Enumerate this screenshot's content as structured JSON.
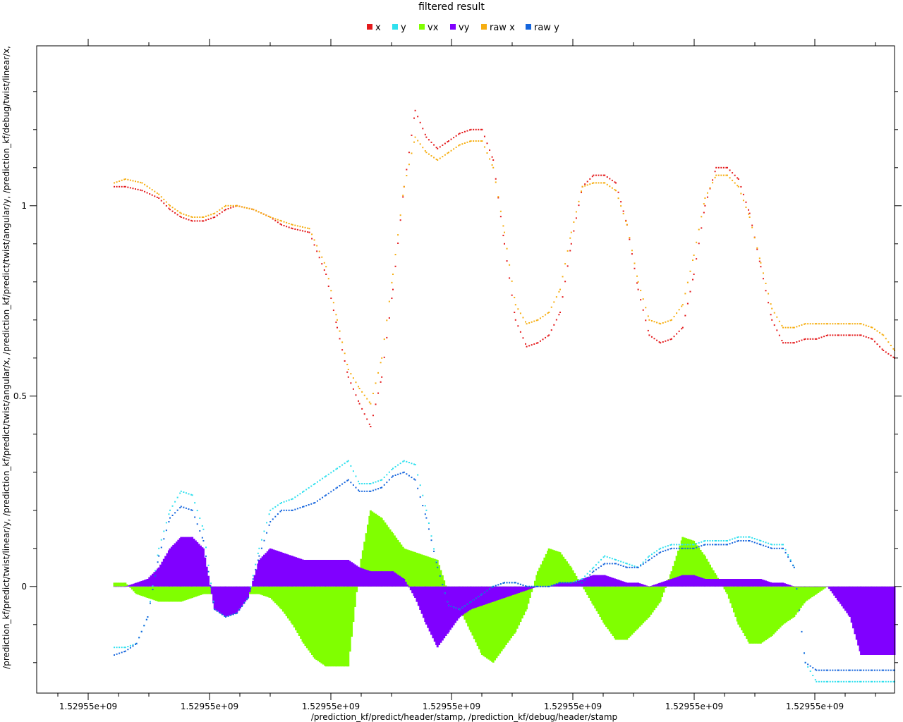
{
  "chart_data": {
    "type": "scatter",
    "title": "filtered result",
    "xlabel": "/prediction_kf/predict/header/stamp, /prediction_kf/debug/header/stamp",
    "ylabel": "/prediction_kf/predict/twist/linear/y, /prediction_kf/predict/twist/angular/x, /prediction_kf/predict/twist/angular/y, /prediction_kf/debug/twist/linear/x,",
    "x_tick_labels": [
      "1.52955e+09",
      "1.52955e+09",
      "1.52955e+09",
      "1.52955e+09",
      "1.52955e+09",
      "1.52955e+09",
      "1.52955e+09"
    ],
    "y_tick_labels": [
      "0",
      "0.5",
      "1"
    ],
    "y_ticks": [
      0,
      0.5,
      1
    ],
    "xlim": [
      0,
      140
    ],
    "ylim": [
      -0.28,
      1.42
    ],
    "grid": false,
    "legend_position": "top-center",
    "series": [
      {
        "name": "x",
        "color": "#e41a1c",
        "style": "points",
        "x": [
          0,
          2,
          5,
          8,
          10,
          12,
          14,
          16,
          18,
          20,
          22,
          25,
          28,
          30,
          32,
          35,
          38,
          40,
          42,
          44,
          46,
          48,
          50,
          52,
          54,
          56,
          58,
          60,
          62,
          64,
          66,
          68,
          70,
          72,
          74,
          76,
          78,
          80,
          82,
          84,
          86,
          88,
          90,
          92,
          94,
          96,
          98,
          100,
          102,
          104,
          106,
          108,
          110,
          112,
          114,
          116,
          118,
          120,
          122,
          124,
          126,
          128,
          130,
          132,
          134,
          136,
          138,
          140
        ],
        "y": [
          1.05,
          1.05,
          1.04,
          1.02,
          0.99,
          0.97,
          0.96,
          0.96,
          0.97,
          0.99,
          1.0,
          0.99,
          0.97,
          0.95,
          0.94,
          0.93,
          0.82,
          0.68,
          0.55,
          0.48,
          0.42,
          0.55,
          0.78,
          1.05,
          1.25,
          1.18,
          1.15,
          1.17,
          1.19,
          1.2,
          1.2,
          1.12,
          0.9,
          0.7,
          0.63,
          0.64,
          0.66,
          0.72,
          0.9,
          1.05,
          1.08,
          1.08,
          1.06,
          0.95,
          0.78,
          0.66,
          0.64,
          0.65,
          0.68,
          0.82,
          1.0,
          1.1,
          1.1,
          1.07,
          0.98,
          0.84,
          0.7,
          0.64,
          0.64,
          0.65,
          0.65,
          0.66,
          0.66,
          0.66,
          0.66,
          0.65,
          0.62,
          0.6
        ]
      },
      {
        "name": "y",
        "color": "#2fe0ee",
        "style": "points",
        "x": [
          0,
          2,
          4,
          6,
          8,
          10,
          12,
          14,
          16,
          18,
          20,
          22,
          24,
          26,
          28,
          30,
          32,
          34,
          36,
          38,
          40,
          42,
          44,
          46,
          48,
          50,
          52,
          54,
          56,
          58,
          60,
          62,
          64,
          66,
          68,
          70,
          72,
          74,
          76,
          78,
          80,
          82,
          84,
          86,
          88,
          90,
          92,
          94,
          96,
          98,
          100,
          102,
          104,
          106,
          108,
          110,
          112,
          114,
          116,
          118,
          120,
          122,
          124,
          126,
          128,
          130,
          132,
          134,
          136,
          138,
          140
        ],
        "y": [
          -0.16,
          -0.16,
          -0.15,
          -0.08,
          0.1,
          0.2,
          0.25,
          0.24,
          0.15,
          -0.06,
          -0.08,
          -0.07,
          -0.03,
          0.1,
          0.2,
          0.22,
          0.23,
          0.25,
          0.27,
          0.29,
          0.31,
          0.33,
          0.27,
          0.27,
          0.28,
          0.31,
          0.33,
          0.32,
          0.2,
          0.05,
          -0.05,
          -0.06,
          -0.04,
          -0.02,
          0.0,
          0.01,
          0.01,
          0.0,
          0.0,
          0.0,
          0.01,
          0.01,
          0.02,
          0.05,
          0.08,
          0.07,
          0.06,
          0.05,
          0.08,
          0.1,
          0.11,
          0.11,
          0.11,
          0.12,
          0.12,
          0.12,
          0.13,
          0.13,
          0.12,
          0.11,
          0.11,
          0.05,
          -0.2,
          -0.25,
          -0.25,
          -0.25,
          -0.25,
          -0.25,
          -0.25,
          -0.25,
          -0.25
        ]
      },
      {
        "name": "vx",
        "color": "#80ff00",
        "style": "bars",
        "x": [
          0,
          2,
          4,
          6,
          8,
          10,
          12,
          14,
          16,
          18,
          20,
          22,
          24,
          26,
          28,
          30,
          32,
          34,
          36,
          38,
          40,
          42,
          44,
          46,
          48,
          50,
          52,
          54,
          56,
          58,
          60,
          62,
          64,
          66,
          68,
          70,
          72,
          74,
          76,
          78,
          80,
          82,
          84,
          86,
          88,
          90,
          92,
          94,
          96,
          98,
          100,
          102,
          104,
          106,
          108,
          110,
          112,
          114,
          116,
          118,
          120,
          122,
          124,
          126,
          128,
          130,
          132,
          134,
          136,
          138,
          140
        ],
        "y": [
          0.01,
          0.01,
          -0.02,
          -0.03,
          -0.04,
          -0.04,
          -0.04,
          -0.03,
          -0.02,
          -0.02,
          -0.02,
          -0.02,
          -0.02,
          -0.02,
          -0.03,
          -0.06,
          -0.1,
          -0.15,
          -0.19,
          -0.21,
          -0.21,
          -0.21,
          0.05,
          0.2,
          0.18,
          0.14,
          0.1,
          0.09,
          0.08,
          0.07,
          -0.02,
          -0.06,
          -0.12,
          -0.18,
          -0.2,
          -0.16,
          -0.12,
          -0.06,
          0.04,
          0.1,
          0.09,
          0.05,
          0.0,
          -0.05,
          -0.1,
          -0.14,
          -0.14,
          -0.11,
          -0.08,
          -0.04,
          0.04,
          0.13,
          0.12,
          0.08,
          0.03,
          -0.02,
          -0.1,
          -0.15,
          -0.15,
          -0.13,
          -0.1,
          -0.08,
          -0.04,
          -0.02,
          0.0,
          0.0,
          0.0,
          0.0,
          0.0,
          0.0,
          0.0
        ]
      },
      {
        "name": "vy",
        "color": "#8000ff",
        "style": "bars",
        "x": [
          0,
          2,
          4,
          6,
          8,
          10,
          12,
          14,
          16,
          18,
          20,
          22,
          24,
          26,
          28,
          30,
          32,
          34,
          36,
          38,
          40,
          42,
          44,
          46,
          48,
          50,
          52,
          54,
          56,
          58,
          60,
          62,
          64,
          66,
          68,
          70,
          72,
          74,
          76,
          78,
          80,
          82,
          84,
          86,
          88,
          90,
          92,
          94,
          96,
          98,
          100,
          102,
          104,
          106,
          108,
          110,
          112,
          114,
          116,
          118,
          120,
          122,
          124,
          126,
          128,
          130,
          132,
          134,
          136,
          138,
          140
        ],
        "y": [
          0.0,
          0.0,
          0.01,
          0.02,
          0.05,
          0.1,
          0.13,
          0.13,
          0.1,
          -0.06,
          -0.08,
          -0.07,
          -0.03,
          0.07,
          0.1,
          0.09,
          0.08,
          0.07,
          0.07,
          0.07,
          0.07,
          0.07,
          0.05,
          0.04,
          0.04,
          0.04,
          0.02,
          -0.03,
          -0.1,
          -0.16,
          -0.12,
          -0.08,
          -0.06,
          -0.05,
          -0.04,
          -0.03,
          -0.02,
          -0.01,
          0.0,
          0.0,
          0.01,
          0.01,
          0.02,
          0.03,
          0.03,
          0.02,
          0.01,
          0.01,
          0.0,
          0.01,
          0.02,
          0.03,
          0.03,
          0.02,
          0.02,
          0.02,
          0.02,
          0.02,
          0.02,
          0.01,
          0.01,
          0.0,
          0.0,
          0.0,
          0.0,
          -0.04,
          -0.08,
          -0.18,
          -0.18,
          -0.18,
          -0.18
        ]
      },
      {
        "name": "raw x",
        "color": "#f6ae11",
        "style": "points",
        "x": [
          0,
          2,
          5,
          8,
          10,
          12,
          14,
          16,
          18,
          20,
          22,
          25,
          28,
          30,
          32,
          35,
          38,
          40,
          42,
          44,
          46,
          48,
          50,
          52,
          54,
          56,
          58,
          60,
          62,
          64,
          66,
          68,
          70,
          72,
          74,
          76,
          78,
          80,
          82,
          84,
          86,
          88,
          90,
          92,
          94,
          96,
          98,
          100,
          102,
          104,
          106,
          108,
          110,
          112,
          114,
          116,
          118,
          120,
          122,
          124,
          126,
          128,
          130,
          132,
          134,
          136,
          138,
          140
        ],
        "y": [
          1.06,
          1.07,
          1.06,
          1.03,
          1.0,
          0.98,
          0.97,
          0.97,
          0.98,
          1.0,
          1.0,
          0.99,
          0.97,
          0.96,
          0.95,
          0.94,
          0.84,
          0.7,
          0.57,
          0.52,
          0.48,
          0.6,
          0.82,
          1.05,
          1.18,
          1.14,
          1.12,
          1.14,
          1.16,
          1.17,
          1.17,
          1.1,
          0.93,
          0.74,
          0.69,
          0.7,
          0.72,
          0.78,
          0.93,
          1.05,
          1.06,
          1.06,
          1.04,
          0.95,
          0.8,
          0.7,
          0.69,
          0.7,
          0.74,
          0.87,
          1.02,
          1.08,
          1.08,
          1.05,
          0.97,
          0.85,
          0.73,
          0.68,
          0.68,
          0.69,
          0.69,
          0.69,
          0.69,
          0.69,
          0.69,
          0.68,
          0.66,
          0.62
        ]
      },
      {
        "name": "raw y",
        "color": "#1565dd",
        "style": "points",
        "x": [
          0,
          2,
          4,
          6,
          8,
          10,
          12,
          14,
          16,
          18,
          20,
          22,
          24,
          26,
          28,
          30,
          32,
          34,
          36,
          38,
          40,
          42,
          44,
          46,
          48,
          50,
          52,
          54,
          56,
          58,
          60,
          62,
          64,
          66,
          68,
          70,
          72,
          74,
          76,
          78,
          80,
          82,
          84,
          86,
          88,
          90,
          92,
          94,
          96,
          98,
          100,
          102,
          104,
          106,
          108,
          110,
          112,
          114,
          116,
          118,
          120,
          122,
          124,
          126,
          128,
          130,
          132,
          134,
          136,
          138,
          140
        ],
        "y": [
          -0.18,
          -0.17,
          -0.15,
          -0.08,
          0.08,
          0.18,
          0.21,
          0.2,
          0.12,
          -0.06,
          -0.08,
          -0.07,
          -0.03,
          0.08,
          0.17,
          0.2,
          0.2,
          0.21,
          0.22,
          0.24,
          0.26,
          0.28,
          0.25,
          0.25,
          0.26,
          0.29,
          0.3,
          0.28,
          0.18,
          0.05,
          -0.05,
          -0.06,
          -0.04,
          -0.02,
          0.0,
          0.01,
          0.01,
          0.0,
          0.0,
          0.0,
          0.01,
          0.01,
          0.01,
          0.04,
          0.06,
          0.06,
          0.05,
          0.05,
          0.07,
          0.09,
          0.1,
          0.1,
          0.1,
          0.11,
          0.11,
          0.11,
          0.12,
          0.12,
          0.11,
          0.1,
          0.1,
          0.05,
          -0.2,
          -0.22,
          -0.22,
          -0.22,
          -0.22,
          -0.22,
          -0.22,
          -0.22,
          -0.22
        ]
      }
    ]
  }
}
